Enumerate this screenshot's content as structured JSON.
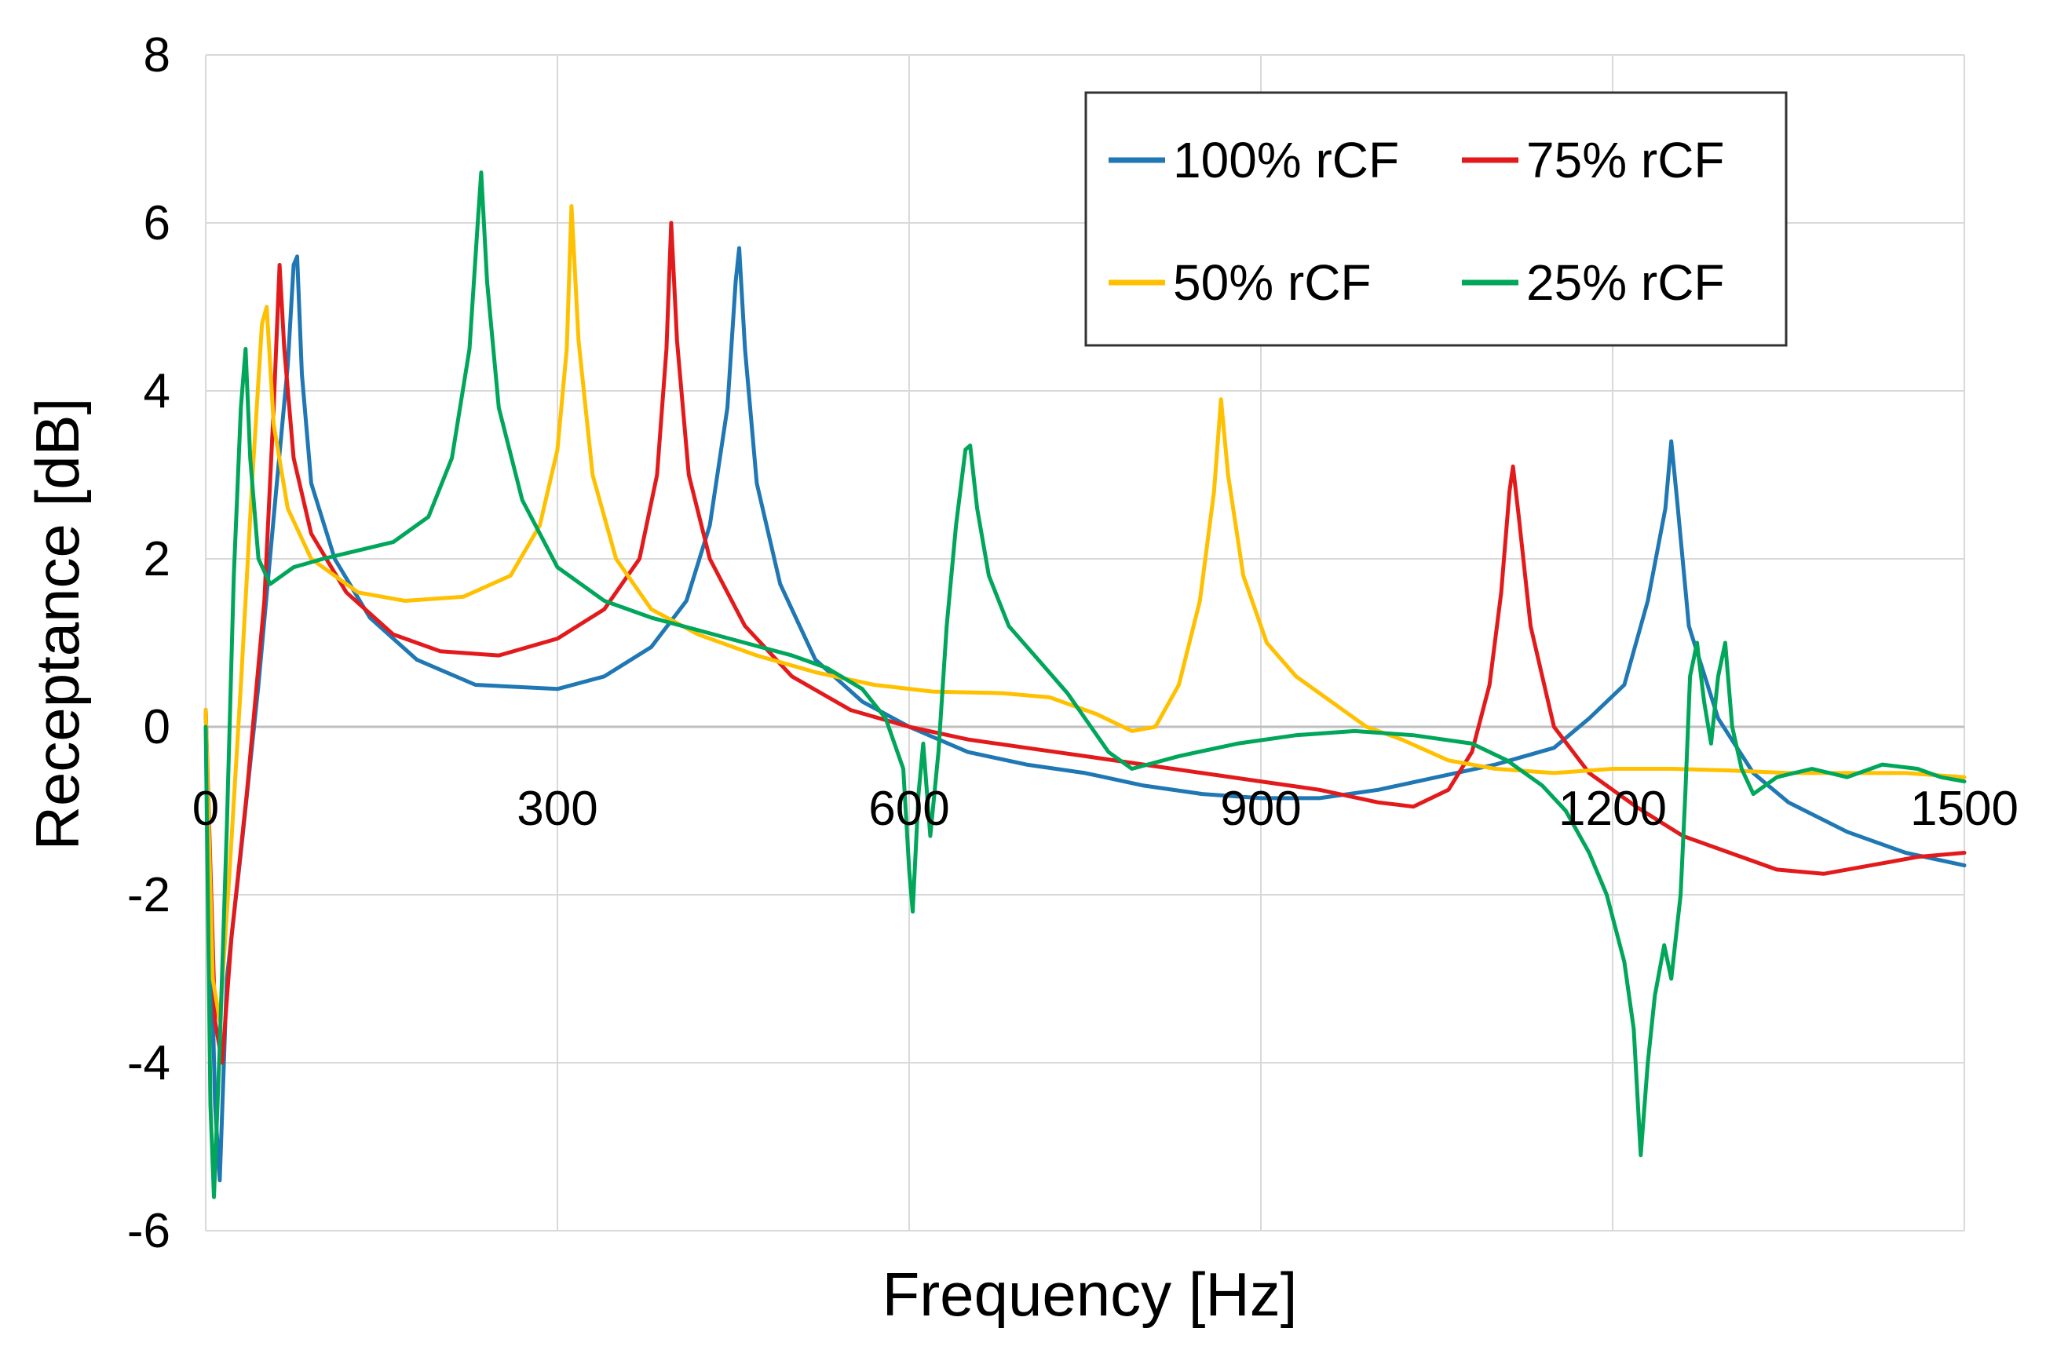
{
  "chart_data": {
    "type": "line",
    "title": "",
    "xlabel": "Frequency [Hz]",
    "ylabel": "Receptance [dB]",
    "xlim": [
      0,
      1500
    ],
    "ylim": [
      -6,
      8
    ],
    "xticks": [
      0,
      300,
      600,
      900,
      1200,
      1500
    ],
    "xtick_labels": [
      "0",
      "300",
      "600",
      "900",
      "1200",
      "1500"
    ],
    "yticks": [
      -6,
      -4,
      -2,
      0,
      2,
      4,
      6,
      8
    ],
    "ytick_labels": [
      "-6",
      "-4",
      "-2",
      "0",
      "2",
      "4",
      "6",
      "8"
    ],
    "grid": true,
    "legend_position": "top-right",
    "series": [
      {
        "name": "100% rCF",
        "color": "#1f77b4",
        "points": [
          [
            0,
            0.2
          ],
          [
            8,
            -4.5
          ],
          [
            12,
            -5.4
          ],
          [
            18,
            -3.0
          ],
          [
            30,
            -1.5
          ],
          [
            45,
            0.5
          ],
          [
            60,
            2.8
          ],
          [
            70,
            4.3
          ],
          [
            75,
            5.5
          ],
          [
            78,
            5.6
          ],
          [
            82,
            4.2
          ],
          [
            90,
            2.9
          ],
          [
            110,
            2.0
          ],
          [
            140,
            1.3
          ],
          [
            180,
            0.8
          ],
          [
            230,
            0.5
          ],
          [
            300,
            0.45
          ],
          [
            340,
            0.6
          ],
          [
            380,
            0.95
          ],
          [
            410,
            1.5
          ],
          [
            430,
            2.4
          ],
          [
            445,
            3.8
          ],
          [
            452,
            5.3
          ],
          [
            455,
            5.7
          ],
          [
            460,
            4.5
          ],
          [
            470,
            2.9
          ],
          [
            490,
            1.7
          ],
          [
            520,
            0.8
          ],
          [
            560,
            0.3
          ],
          [
            600,
            0.0
          ],
          [
            650,
            -0.3
          ],
          [
            700,
            -0.45
          ],
          [
            750,
            -0.55
          ],
          [
            800,
            -0.7
          ],
          [
            850,
            -0.8
          ],
          [
            900,
            -0.85
          ],
          [
            950,
            -0.85
          ],
          [
            1000,
            -0.75
          ],
          [
            1050,
            -0.6
          ],
          [
            1100,
            -0.45
          ],
          [
            1150,
            -0.25
          ],
          [
            1180,
            0.1
          ],
          [
            1210,
            0.5
          ],
          [
            1230,
            1.5
          ],
          [
            1245,
            2.6
          ],
          [
            1250,
            3.4
          ],
          [
            1255,
            2.7
          ],
          [
            1265,
            1.2
          ],
          [
            1290,
            0.1
          ],
          [
            1320,
            -0.55
          ],
          [
            1350,
            -0.9
          ],
          [
            1400,
            -1.25
          ],
          [
            1450,
            -1.5
          ],
          [
            1500,
            -1.65
          ]
        ]
      },
      {
        "name": "75% rCF",
        "color": "#e31a1c",
        "points": [
          [
            0,
            0.2
          ],
          [
            8,
            -3.5
          ],
          [
            14,
            -4.0
          ],
          [
            22,
            -2.5
          ],
          [
            35,
            -0.8
          ],
          [
            50,
            1.5
          ],
          [
            58,
            3.8
          ],
          [
            63,
            5.5
          ],
          [
            67,
            4.5
          ],
          [
            75,
            3.2
          ],
          [
            90,
            2.3
          ],
          [
            120,
            1.6
          ],
          [
            160,
            1.1
          ],
          [
            200,
            0.9
          ],
          [
            250,
            0.85
          ],
          [
            300,
            1.05
          ],
          [
            340,
            1.4
          ],
          [
            370,
            2.0
          ],
          [
            385,
            3.0
          ],
          [
            393,
            4.5
          ],
          [
            397,
            6.0
          ],
          [
            402,
            4.6
          ],
          [
            412,
            3.0
          ],
          [
            430,
            2.0
          ],
          [
            460,
            1.2
          ],
          [
            500,
            0.6
          ],
          [
            550,
            0.2
          ],
          [
            600,
            0.0
          ],
          [
            650,
            -0.15
          ],
          [
            700,
            -0.25
          ],
          [
            750,
            -0.35
          ],
          [
            800,
            -0.45
          ],
          [
            850,
            -0.55
          ],
          [
            900,
            -0.65
          ],
          [
            950,
            -0.75
          ],
          [
            1000,
            -0.9
          ],
          [
            1030,
            -0.95
          ],
          [
            1060,
            -0.75
          ],
          [
            1080,
            -0.3
          ],
          [
            1095,
            0.5
          ],
          [
            1105,
            1.6
          ],
          [
            1112,
            2.8
          ],
          [
            1115,
            3.1
          ],
          [
            1120,
            2.5
          ],
          [
            1130,
            1.2
          ],
          [
            1150,
            0.0
          ],
          [
            1180,
            -0.55
          ],
          [
            1220,
            -0.95
          ],
          [
            1260,
            -1.3
          ],
          [
            1300,
            -1.5
          ],
          [
            1340,
            -1.7
          ],
          [
            1380,
            -1.75
          ],
          [
            1420,
            -1.65
          ],
          [
            1460,
            -1.55
          ],
          [
            1500,
            -1.5
          ]
        ]
      },
      {
        "name": "50% rCF",
        "color": "#ffc000",
        "points": [
          [
            0,
            0.2
          ],
          [
            6,
            -3.0
          ],
          [
            12,
            -3.5
          ],
          [
            20,
            -1.8
          ],
          [
            30,
            0.5
          ],
          [
            40,
            3.0
          ],
          [
            48,
            4.8
          ],
          [
            52,
            5.0
          ],
          [
            58,
            3.6
          ],
          [
            70,
            2.6
          ],
          [
            90,
            2.0
          ],
          [
            130,
            1.6
          ],
          [
            170,
            1.5
          ],
          [
            220,
            1.55
          ],
          [
            260,
            1.8
          ],
          [
            285,
            2.4
          ],
          [
            300,
            3.3
          ],
          [
            308,
            4.5
          ],
          [
            312,
            6.2
          ],
          [
            318,
            4.6
          ],
          [
            330,
            3.0
          ],
          [
            350,
            2.0
          ],
          [
            380,
            1.4
          ],
          [
            420,
            1.1
          ],
          [
            470,
            0.85
          ],
          [
            520,
            0.65
          ],
          [
            570,
            0.5
          ],
          [
            620,
            0.42
          ],
          [
            680,
            0.4
          ],
          [
            720,
            0.35
          ],
          [
            760,
            0.15
          ],
          [
            790,
            -0.05
          ],
          [
            810,
            0.0
          ],
          [
            830,
            0.5
          ],
          [
            848,
            1.5
          ],
          [
            860,
            2.8
          ],
          [
            866,
            3.9
          ],
          [
            872,
            3.0
          ],
          [
            885,
            1.8
          ],
          [
            905,
            1.0
          ],
          [
            930,
            0.6
          ],
          [
            960,
            0.3
          ],
          [
            990,
            0.0
          ],
          [
            1020,
            -0.15
          ],
          [
            1060,
            -0.4
          ],
          [
            1100,
            -0.5
          ],
          [
            1150,
            -0.55
          ],
          [
            1200,
            -0.5
          ],
          [
            1250,
            -0.5
          ],
          [
            1300,
            -0.52
          ],
          [
            1350,
            -0.55
          ],
          [
            1400,
            -0.55
          ],
          [
            1450,
            -0.55
          ],
          [
            1500,
            -0.6
          ]
        ]
      },
      {
        "name": "25% rCF",
        "color": "#00a65a",
        "points": [
          [
            0,
            0.0
          ],
          [
            4,
            -4.5
          ],
          [
            7,
            -5.6
          ],
          [
            12,
            -3.8
          ],
          [
            18,
            -1.2
          ],
          [
            24,
            1.8
          ],
          [
            30,
            3.8
          ],
          [
            34,
            4.5
          ],
          [
            38,
            3.2
          ],
          [
            45,
            2.0
          ],
          [
            55,
            1.7
          ],
          [
            75,
            1.9
          ],
          [
            100,
            2.0
          ],
          [
            130,
            2.1
          ],
          [
            160,
            2.2
          ],
          [
            190,
            2.5
          ],
          [
            210,
            3.2
          ],
          [
            225,
            4.5
          ],
          [
            232,
            6.0
          ],
          [
            235,
            6.6
          ],
          [
            240,
            5.3
          ],
          [
            250,
            3.8
          ],
          [
            270,
            2.7
          ],
          [
            300,
            1.9
          ],
          [
            340,
            1.5
          ],
          [
            380,
            1.3
          ],
          [
            420,
            1.15
          ],
          [
            460,
            1.0
          ],
          [
            500,
            0.85
          ],
          [
            530,
            0.7
          ],
          [
            560,
            0.45
          ],
          [
            580,
            0.1
          ],
          [
            595,
            -0.5
          ],
          [
            600,
            -1.7
          ],
          [
            603,
            -2.2
          ],
          [
            608,
            -0.8
          ],
          [
            612,
            -0.2
          ],
          [
            618,
            -1.3
          ],
          [
            625,
            -0.3
          ],
          [
            632,
            1.2
          ],
          [
            640,
            2.4
          ],
          [
            648,
            3.3
          ],
          [
            652,
            3.35
          ],
          [
            658,
            2.6
          ],
          [
            668,
            1.8
          ],
          [
            685,
            1.2
          ],
          [
            710,
            0.8
          ],
          [
            735,
            0.4
          ],
          [
            755,
            0.0
          ],
          [
            770,
            -0.3
          ],
          [
            790,
            -0.5
          ],
          [
            830,
            -0.35
          ],
          [
            880,
            -0.2
          ],
          [
            930,
            -0.1
          ],
          [
            980,
            -0.05
          ],
          [
            1030,
            -0.1
          ],
          [
            1080,
            -0.2
          ],
          [
            1110,
            -0.4
          ],
          [
            1140,
            -0.7
          ],
          [
            1160,
            -1.0
          ],
          [
            1180,
            -1.5
          ],
          [
            1195,
            -2.0
          ],
          [
            1210,
            -2.8
          ],
          [
            1218,
            -3.6
          ],
          [
            1224,
            -5.1
          ],
          [
            1230,
            -4.0
          ],
          [
            1236,
            -3.2
          ],
          [
            1244,
            -2.6
          ],
          [
            1250,
            -3.0
          ],
          [
            1258,
            -2.0
          ],
          [
            1262,
            -0.8
          ],
          [
            1266,
            0.6
          ],
          [
            1272,
            1.0
          ],
          [
            1278,
            0.3
          ],
          [
            1284,
            -0.2
          ],
          [
            1290,
            0.6
          ],
          [
            1296,
            1.0
          ],
          [
            1302,
            0.0
          ],
          [
            1310,
            -0.5
          ],
          [
            1320,
            -0.8
          ],
          [
            1340,
            -0.6
          ],
          [
            1370,
            -0.5
          ],
          [
            1400,
            -0.6
          ],
          [
            1430,
            -0.45
          ],
          [
            1460,
            -0.5
          ],
          [
            1480,
            -0.6
          ],
          [
            1500,
            -0.65
          ]
        ]
      }
    ]
  }
}
